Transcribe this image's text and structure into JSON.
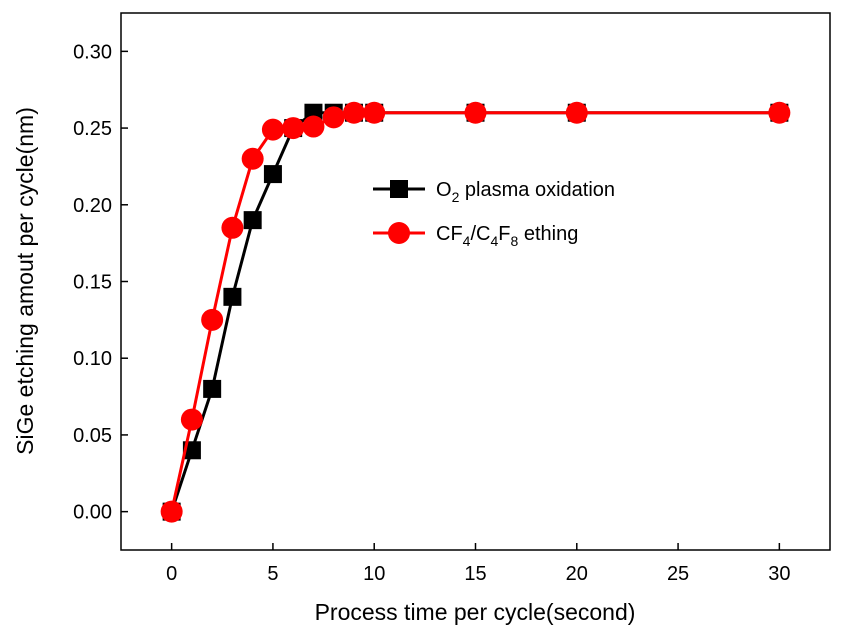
{
  "chart_data": {
    "type": "line",
    "title": "",
    "xlabel": "Process time  per cycle(second)",
    "ylabel": "SiGe etching amout per cycle(nm)",
    "xlim": [
      -2.5,
      32.5
    ],
    "ylim": [
      -0.025,
      0.325
    ],
    "xticks": [
      0,
      5,
      10,
      15,
      20,
      25,
      30
    ],
    "yticks": [
      0.0,
      0.05,
      0.1,
      0.15,
      0.2,
      0.25,
      0.3
    ],
    "xtick_labels": [
      "0",
      "5",
      "10",
      "15",
      "20",
      "25",
      "30"
    ],
    "ytick_labels": [
      "0.00",
      "0.05",
      "0.10",
      "0.15",
      "0.20",
      "0.25",
      "0.30"
    ],
    "grid": false,
    "legend_position": "center-right",
    "series": [
      {
        "name": "O2 plasma oxidation",
        "legend_parts": [
          {
            "text": "O",
            "sub": false
          },
          {
            "text": "2",
            "sub": true
          },
          {
            "text": " plasma oxidation",
            "sub": false
          }
        ],
        "color": "#000000",
        "marker": "square",
        "x": [
          0,
          1,
          2,
          3,
          4,
          5,
          6,
          7,
          8,
          9,
          10,
          15,
          20,
          30
        ],
        "y": [
          0.0,
          0.04,
          0.08,
          0.14,
          0.19,
          0.22,
          0.25,
          0.26,
          0.26,
          0.26,
          0.26,
          0.26,
          0.26,
          0.26
        ]
      },
      {
        "name": "CF4/C4F8 ething",
        "legend_parts": [
          {
            "text": "CF",
            "sub": false
          },
          {
            "text": "4",
            "sub": true
          },
          {
            "text": "/C",
            "sub": false
          },
          {
            "text": "4",
            "sub": true
          },
          {
            "text": "F",
            "sub": false
          },
          {
            "text": "8",
            "sub": true
          },
          {
            "text": " ething",
            "sub": false
          }
        ],
        "color": "#ff0000",
        "marker": "circle",
        "x": [
          0,
          1,
          2,
          3,
          4,
          5,
          6,
          7,
          8,
          9,
          10,
          15,
          20,
          30
        ],
        "y": [
          0.0,
          0.06,
          0.125,
          0.185,
          0.23,
          0.249,
          0.25,
          0.251,
          0.257,
          0.26,
          0.26,
          0.26,
          0.26,
          0.26
        ]
      }
    ]
  }
}
